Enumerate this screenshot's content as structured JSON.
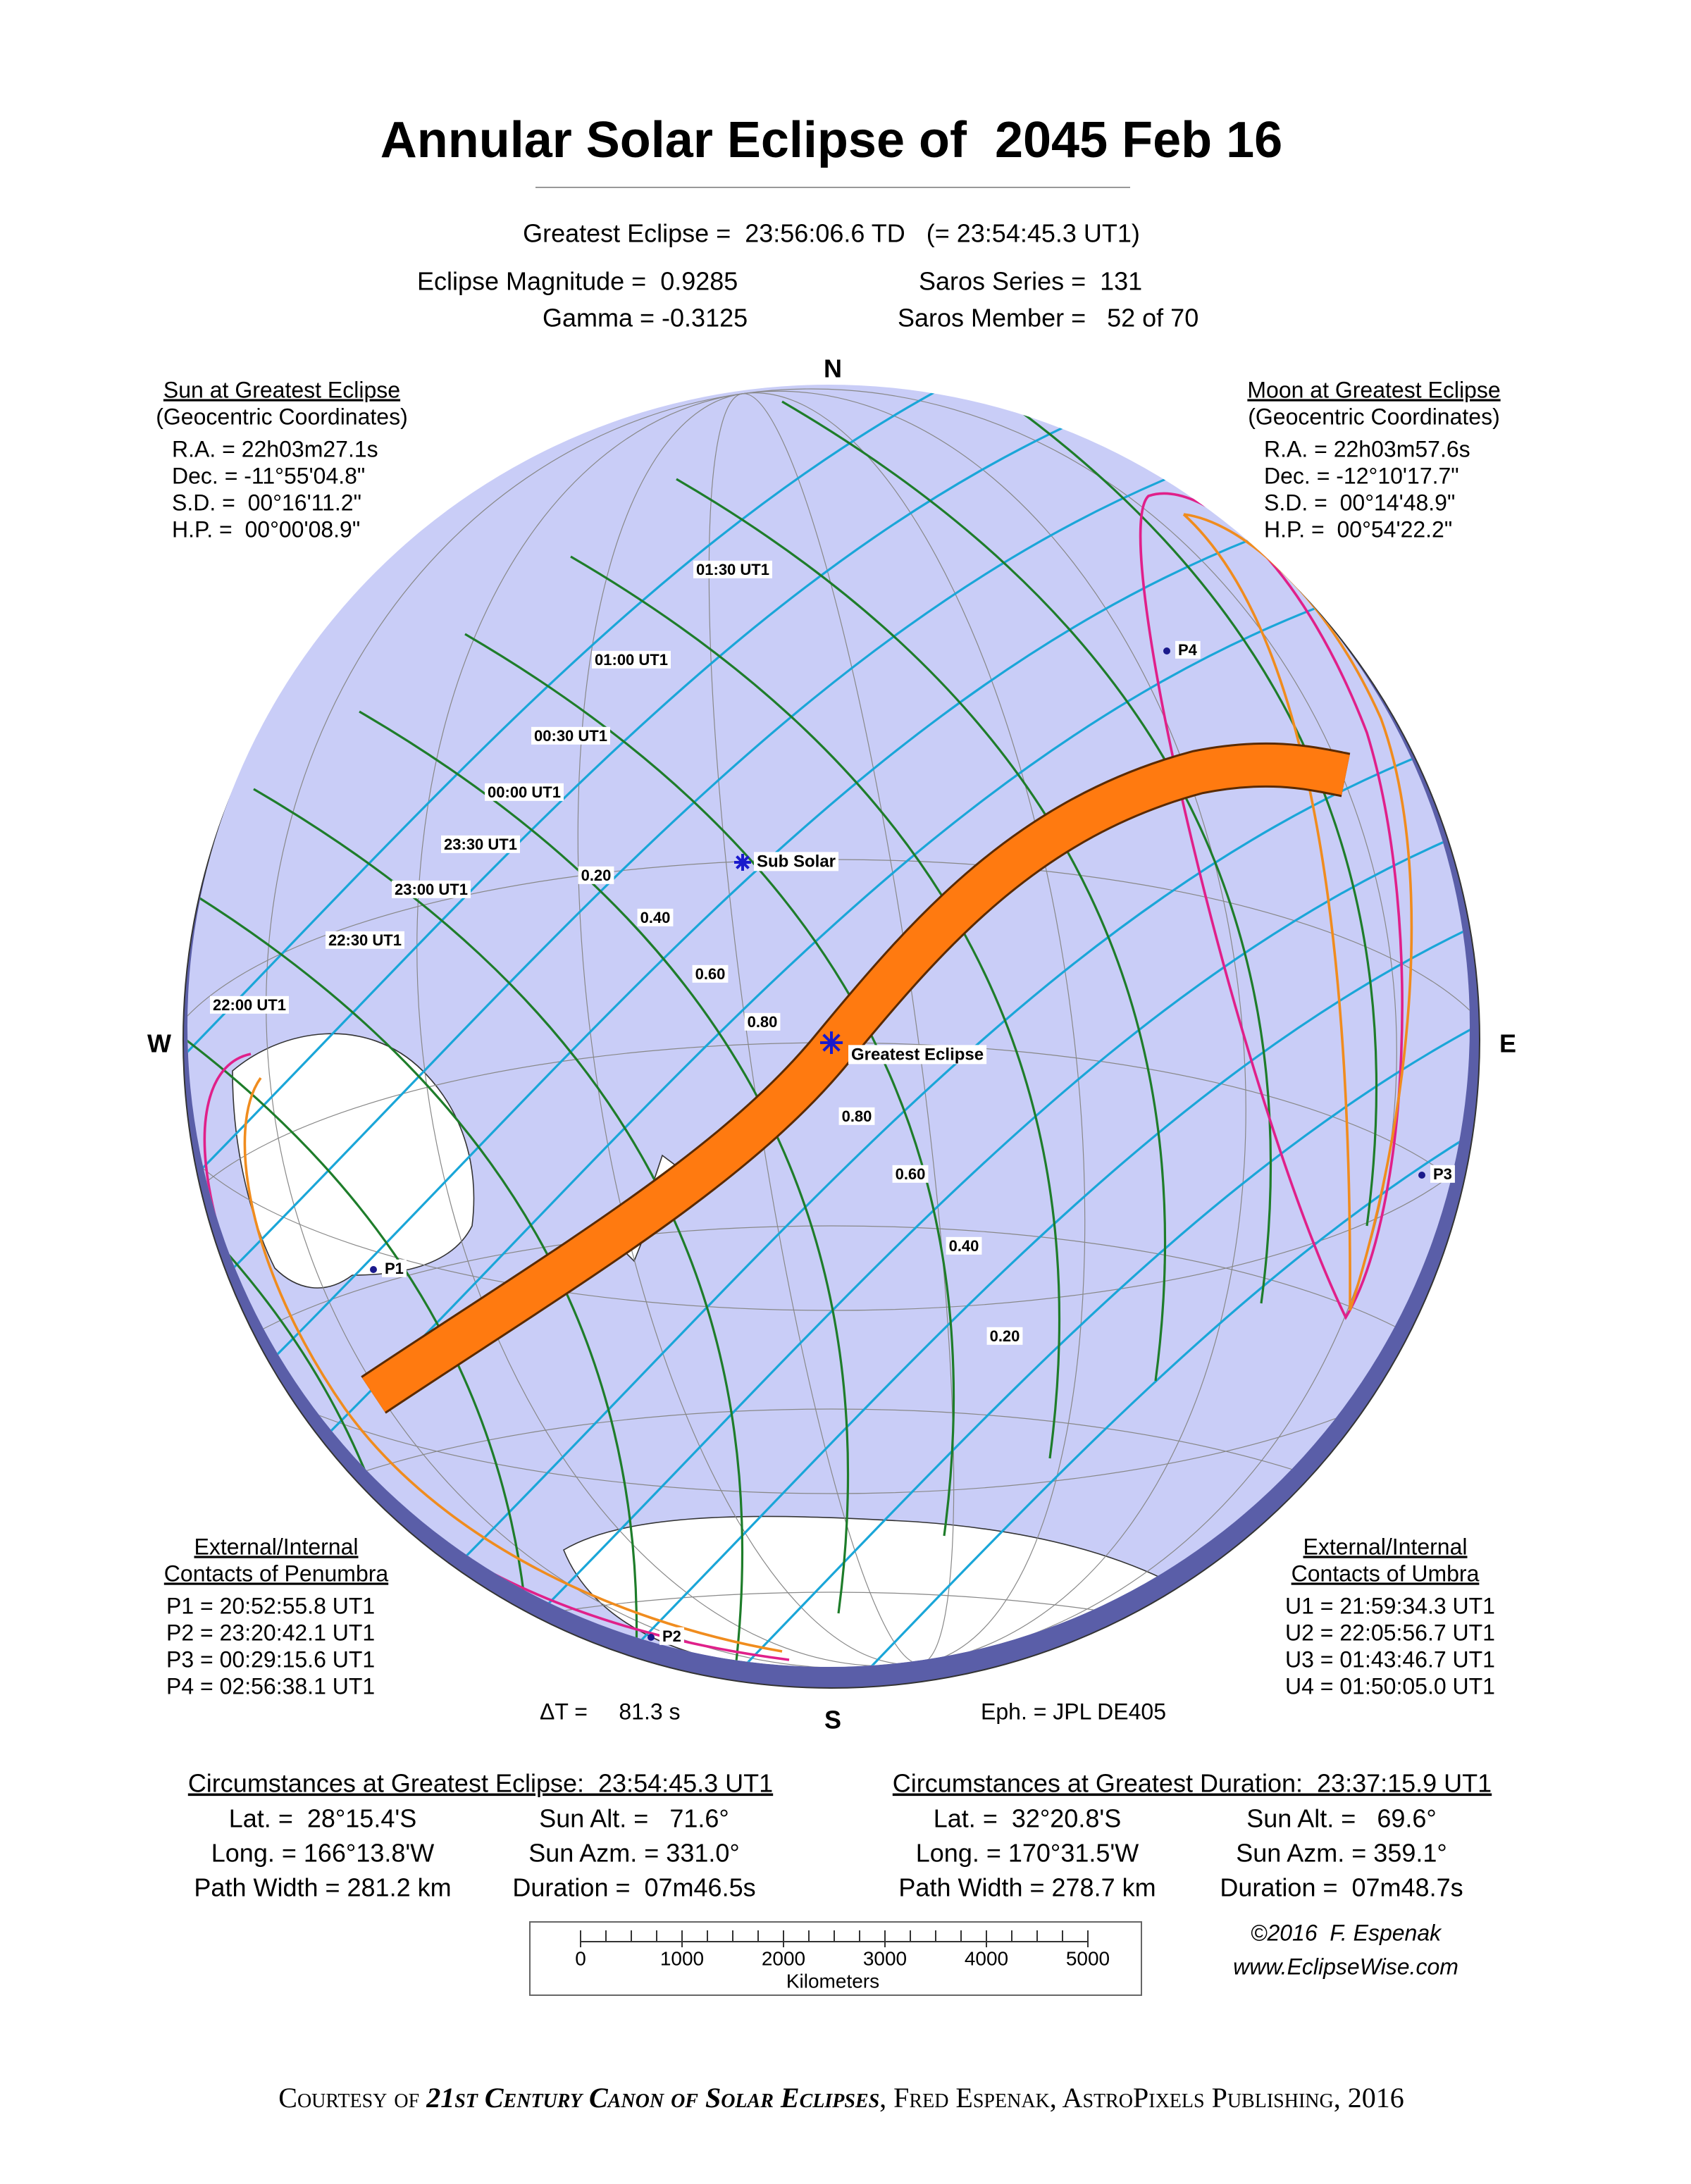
{
  "title": "Annular Solar Eclipse of  2045 Feb 16",
  "greatest_eclipse": "Greatest Eclipse =  23:56:06.6 TD   (= 23:54:45.3 UT1)",
  "params": {
    "magnitude": "Eclipse Magnitude =  0.9285",
    "gamma": "Gamma = -0.3125",
    "saros_series": "Saros Series =  131",
    "saros_member": "Saros Member =   52 of 70"
  },
  "compass": {
    "n": "N",
    "s": "S",
    "e": "E",
    "w": "W"
  },
  "sun": {
    "heading": "Sun at Greatest Eclipse",
    "subheading": "(Geocentric Coordinates)",
    "lines": [
      "R.A. = 22h03m27.1s",
      "Dec. = -11°55'04.8\"",
      "S.D. =  00°16'11.2\"",
      "H.P. =  00°00'08.9\""
    ]
  },
  "moon": {
    "heading": "Moon at Greatest Eclipse",
    "subheading": "(Geocentric Coordinates)",
    "lines": [
      "R.A. = 22h03m57.6s",
      "Dec. = -12°10'17.7\"",
      "S.D. =  00°14'48.9\"",
      "H.P. =  00°54'22.2\""
    ]
  },
  "penumbra": {
    "heading": "External/Internal",
    "subheading": "Contacts of Penumbra",
    "lines": [
      "P1 = 20:52:55.8 UT1",
      "P2 = 23:20:42.1 UT1",
      "P3 = 00:29:15.6 UT1",
      "P4 = 02:56:38.1 UT1"
    ]
  },
  "umbra": {
    "heading": "External/Internal",
    "subheading": "Contacts of Umbra",
    "lines": [
      "U1 = 21:59:34.3 UT1",
      "U2 = 22:05:56.7 UT1",
      "U3 = 01:43:46.7 UT1",
      "U4 = 01:50:05.0 UT1"
    ]
  },
  "delta_t": "ΔT =     81.3 s",
  "ephemeris": "Eph. = JPL DE405",
  "map_labels": {
    "times": [
      "01:30 UT1",
      "01:00 UT1",
      "00:30 UT1",
      "00:00 UT1",
      "23:30 UT1",
      "23:00 UT1",
      "22:30 UT1",
      "22:00 UT1"
    ],
    "magnitudes": [
      "0.20",
      "0.40",
      "0.60",
      "0.80",
      "0.80",
      "0.60",
      "0.40",
      "0.20"
    ],
    "points": [
      "P1",
      "P2",
      "P3",
      "P4"
    ],
    "sub_solar": "Sub Solar",
    "greatest": "Greatest Eclipse"
  },
  "circ_greatest_eclipse": {
    "heading": "Circumstances at Greatest Eclipse:  23:54:45.3 UT1",
    "cells": [
      "Lat. =  28°15.4'S",
      "Sun Alt. =   71.6°",
      "Long. = 166°13.8'W",
      "Sun Azm. = 331.0°",
      "Path Width = 281.2 km",
      "Duration =  07m46.5s"
    ]
  },
  "circ_greatest_duration": {
    "heading": "Circumstances at Greatest Duration:  23:37:15.9 UT1",
    "cells": [
      "Lat. =  32°20.8'S",
      "Sun Alt. =   69.6°",
      "Long. = 170°31.5'W",
      "Sun Azm. = 359.1°",
      "Path Width = 278.7 km",
      "Duration =  07m48.7s"
    ]
  },
  "scale": {
    "ticks": [
      "0",
      "1000",
      "2000",
      "3000",
      "4000",
      "5000"
    ],
    "unit": "Kilometers"
  },
  "credit": [
    "©2016  F. Espenak",
    "www.EclipseWise.com"
  ],
  "footer": [
    "Courtesy of ",
    "21st Century Canon of Solar Eclipses",
    ", Fred Espenak, AstroPixels Publishing, 2016"
  ]
}
